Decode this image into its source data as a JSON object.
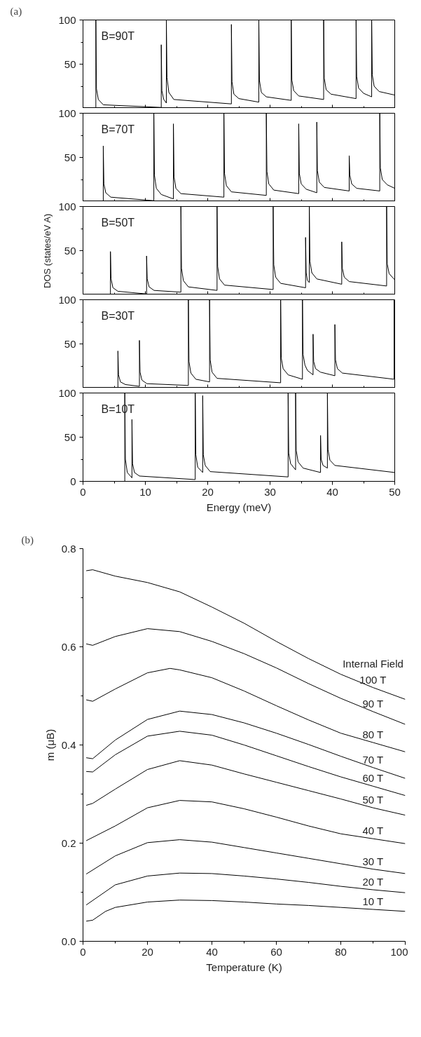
{
  "chart_data": [
    {
      "type": "line",
      "title": "(a)",
      "annotations": [
        "B=90T"
      ],
      "color": "#000000",
      "tick_labels": "y",
      "xlim": [
        0,
        50
      ],
      "xticks": [
        0,
        10,
        20,
        30,
        40,
        50
      ],
      "ylim": [
        0,
        100
      ],
      "yticks": [
        50,
        100
      ],
      "x": [
        0,
        2.06,
        2.06,
        2.16,
        2.46,
        3.26,
        12.55,
        12.55,
        12.65,
        12.95,
        13.37,
        13.37,
        13.47,
        13.77,
        14.57,
        23.8,
        23.8,
        23.9,
        24.2,
        25.0,
        28.2,
        28.2,
        28.3,
        28.6,
        29.4,
        33.4,
        33.4,
        33.5,
        33.8,
        34.6,
        38.6,
        38.6,
        38.7,
        39.0,
        39.8,
        43.8,
        43.8,
        43.9,
        44.2,
        45.0,
        46.3,
        46.3,
        46.4,
        46.7,
        47.5,
        50
      ],
      "values": [
        0,
        0,
        100,
        22,
        10,
        4,
        1,
        72,
        20,
        10,
        6,
        100,
        35,
        18,
        10,
        5,
        95,
        30,
        16,
        11,
        7,
        100,
        32,
        18,
        13,
        9,
        100,
        32,
        20,
        14,
        10,
        100,
        34,
        21,
        16,
        11,
        100,
        36,
        23,
        17,
        13,
        100,
        38,
        25,
        19,
        15
      ]
    },
    {
      "type": "line",
      "annotations": [
        "B=70T"
      ],
      "color": "#000000",
      "tick_labels": "y",
      "xlim": [
        0,
        50
      ],
      "xticks": [
        0,
        10,
        20,
        30,
        40,
        50
      ],
      "ylim": [
        0,
        100
      ],
      "yticks": [
        50,
        100
      ],
      "x": [
        0,
        3.25,
        3.25,
        3.35,
        3.65,
        4.45,
        11.36,
        11.36,
        11.46,
        11.76,
        12.56,
        14.5,
        14.5,
        14.6,
        14.9,
        15.7,
        22.6,
        22.6,
        22.7,
        23.0,
        23.8,
        29.4,
        29.4,
        29.5,
        29.8,
        30.6,
        34.6,
        34.6,
        34.7,
        35.0,
        35.8,
        37.5,
        37.5,
        37.6,
        37.9,
        38.7,
        42.7,
        42.7,
        42.8,
        43.1,
        43.9,
        47.6,
        47.6,
        47.7,
        48.0,
        48.8,
        50
      ],
      "values": [
        0,
        0,
        63,
        20,
        10,
        5,
        1,
        100,
        30,
        15,
        8,
        3,
        88,
        28,
        15,
        9,
        5,
        100,
        32,
        18,
        11,
        7,
        100,
        34,
        20,
        13,
        9,
        88,
        32,
        20,
        14,
        10,
        90,
        35,
        22,
        16,
        12,
        52,
        30,
        20,
        15,
        12,
        100,
        38,
        25,
        19,
        15
      ]
    },
    {
      "type": "line",
      "annotations": [
        "B=50T"
      ],
      "ylabel": "DOS (states/eV A)",
      "color": "#000000",
      "tick_labels": "y",
      "xlim": [
        0,
        50
      ],
      "xticks": [
        0,
        10,
        20,
        30,
        40,
        50
      ],
      "ylim": [
        0,
        100
      ],
      "yticks": [
        50,
        100
      ],
      "x": [
        0,
        4.4,
        4.4,
        4.5,
        4.8,
        5.6,
        10.2,
        10.2,
        10.3,
        10.6,
        11.4,
        15.7,
        15.7,
        15.8,
        16.1,
        16.9,
        21.5,
        21.5,
        21.6,
        21.9,
        22.7,
        30.5,
        30.5,
        30.6,
        30.9,
        31.7,
        35.7,
        35.7,
        35.8,
        36.0,
        36.3,
        36.3,
        36.4,
        36.7,
        37.5,
        41.5,
        41.5,
        41.6,
        41.9,
        42.7,
        48.7,
        48.7,
        48.8,
        49.1,
        50
      ],
      "values": [
        0,
        0,
        49,
        18,
        8,
        4,
        1,
        44,
        18,
        9,
        5,
        3,
        100,
        30,
        16,
        9,
        5,
        100,
        32,
        18,
        11,
        6,
        100,
        34,
        20,
        13,
        8,
        65,
        25,
        16,
        14,
        100,
        38,
        25,
        18,
        12,
        60,
        30,
        20,
        15,
        10,
        100,
        35,
        24,
        17
      ]
    },
    {
      "type": "line",
      "annotations": [
        "B=30T"
      ],
      "color": "#000000",
      "tick_labels": "y",
      "xlim": [
        0,
        50
      ],
      "xticks": [
        0,
        10,
        20,
        30,
        40,
        50
      ],
      "ylim": [
        0,
        100
      ],
      "yticks": [
        50,
        100
      ],
      "x": [
        0,
        5.6,
        5.6,
        5.7,
        6.0,
        6.8,
        9.05,
        9.05,
        9.15,
        9.45,
        10.25,
        16.9,
        16.9,
        17.0,
        17.3,
        18.1,
        20.3,
        20.3,
        20.4,
        20.7,
        21.5,
        31.7,
        31.7,
        31.8,
        32.1,
        32.9,
        35.2,
        35.2,
        35.3,
        35.6,
        36.0,
        36.9,
        36.9,
        37.0,
        37.3,
        38.1,
        40.4,
        40.4,
        40.5,
        40.8,
        41.6,
        49.9,
        49.9,
        50
      ],
      "values": [
        0,
        0,
        42,
        15,
        7,
        4,
        2,
        54,
        18,
        9,
        5,
        3,
        100,
        30,
        17,
        10,
        7,
        100,
        32,
        18,
        11,
        6,
        100,
        34,
        22,
        15,
        10,
        100,
        38,
        26,
        20,
        15,
        61,
        30,
        22,
        18,
        14,
        72,
        32,
        22,
        17,
        10,
        100,
        30
      ]
    },
    {
      "type": "line",
      "annotations": [
        "B=10T"
      ],
      "xlabel": "Energy (meV)",
      "color": "#000000",
      "xlim": [
        0,
        50
      ],
      "xticks": [
        0,
        10,
        20,
        30,
        40,
        50
      ],
      "ylim": [
        0,
        100
      ],
      "yticks": [
        0,
        50,
        100
      ],
      "x": [
        0,
        6.7,
        6.7,
        6.8,
        7.1,
        7.85,
        7.85,
        7.95,
        8.25,
        9.05,
        18,
        18,
        18.1,
        18.4,
        19.2,
        19.2,
        19.3,
        19.6,
        20.4,
        32.9,
        32.9,
        33.0,
        33.3,
        34.1,
        34.1,
        34.2,
        34.5,
        35.3,
        38.1,
        38.1,
        38.2,
        38.5,
        39.2,
        39.2,
        39.3,
        39.6,
        40.4,
        50
      ],
      "values": [
        0,
        0,
        100,
        25,
        10,
        4,
        70,
        20,
        10,
        6,
        2,
        100,
        30,
        16,
        10,
        97,
        30,
        18,
        11,
        5,
        100,
        32,
        20,
        13,
        100,
        35,
        22,
        15,
        10,
        52,
        25,
        18,
        15,
        100,
        36,
        24,
        18,
        10
      ]
    },
    {
      "type": "line",
      "title": "(b)",
      "xlabel": "Temperature (K)",
      "ylabel": "m (μB)",
      "annotations": [
        "Internal Field"
      ],
      "xlim": [
        0,
        100
      ],
      "xticks": [
        0,
        20,
        40,
        60,
        80,
        100
      ],
      "ylim": [
        0,
        0.8
      ],
      "yticks": [
        {
          "value": 0,
          "label": "0.0"
        },
        0.2,
        0.4,
        0.6,
        0.8
      ],
      "series": [
        {
          "name": "100 T",
          "color": "#000000",
          "x": [
            1,
            3,
            10,
            20,
            30,
            40,
            50,
            60,
            70,
            80,
            90,
            100
          ],
          "values": [
            0.755,
            0.757,
            0.744,
            0.731,
            0.712,
            0.681,
            0.648,
            0.611,
            0.576,
            0.544,
            0.517,
            0.493
          ]
        },
        {
          "name": "90 T",
          "color": "#000000",
          "x": [
            1,
            3,
            10,
            20,
            30,
            40,
            50,
            60,
            70,
            80,
            90,
            100
          ],
          "values": [
            0.606,
            0.603,
            0.621,
            0.637,
            0.631,
            0.611,
            0.586,
            0.557,
            0.525,
            0.495,
            0.468,
            0.442
          ]
        },
        {
          "name": "80 T",
          "color": "#000000",
          "x": [
            1,
            3,
            10,
            20,
            27,
            30,
            40,
            50,
            60,
            70,
            80,
            90,
            100
          ],
          "values": [
            0.492,
            0.489,
            0.514,
            0.547,
            0.556,
            0.553,
            0.537,
            0.51,
            0.48,
            0.451,
            0.424,
            0.405,
            0.386
          ]
        },
        {
          "name": "70 T",
          "color": "#000000",
          "x": [
            1,
            3,
            10,
            20,
            30,
            40,
            50,
            60,
            70,
            80,
            90,
            100
          ],
          "values": [
            0.374,
            0.372,
            0.41,
            0.452,
            0.469,
            0.462,
            0.445,
            0.424,
            0.401,
            0.377,
            0.354,
            0.332
          ]
        },
        {
          "name": "60 T",
          "color": "#000000",
          "x": [
            1,
            3,
            10,
            20,
            30,
            40,
            50,
            60,
            70,
            80,
            90,
            100
          ],
          "values": [
            0.346,
            0.345,
            0.38,
            0.418,
            0.428,
            0.42,
            0.4,
            0.378,
            0.356,
            0.335,
            0.316,
            0.297
          ]
        },
        {
          "name": "50 T",
          "color": "#000000",
          "x": [
            1,
            3,
            10,
            20,
            30,
            40,
            50,
            60,
            70,
            80,
            90,
            100
          ],
          "values": [
            0.277,
            0.281,
            0.31,
            0.35,
            0.368,
            0.359,
            0.341,
            0.324,
            0.307,
            0.29,
            0.272,
            0.257
          ]
        },
        {
          "name": "40 T",
          "color": "#000000",
          "x": [
            1,
            10,
            20,
            30,
            40,
            50,
            60,
            70,
            80,
            90,
            100
          ],
          "values": [
            0.205,
            0.235,
            0.272,
            0.287,
            0.284,
            0.27,
            0.253,
            0.235,
            0.219,
            0.209,
            0.199
          ]
        },
        {
          "name": "30 T",
          "color": "#000000",
          "x": [
            1,
            10,
            20,
            30,
            40,
            50,
            60,
            70,
            80,
            90,
            100
          ],
          "values": [
            0.137,
            0.174,
            0.201,
            0.207,
            0.202,
            0.191,
            0.18,
            0.169,
            0.158,
            0.147,
            0.138
          ]
        },
        {
          "name": "20 T",
          "color": "#000000",
          "x": [
            1,
            10,
            20,
            30,
            40,
            50,
            60,
            70,
            80,
            90,
            100
          ],
          "values": [
            0.074,
            0.115,
            0.133,
            0.139,
            0.138,
            0.133,
            0.127,
            0.12,
            0.112,
            0.105,
            0.099
          ]
        },
        {
          "name": "10 T",
          "color": "#000000",
          "x": [
            1,
            3,
            7,
            10,
            20,
            30,
            40,
            50,
            60,
            70,
            80,
            90,
            100
          ],
          "values": [
            0.041,
            0.043,
            0.061,
            0.069,
            0.08,
            0.084,
            0.083,
            0.08,
            0.076,
            0.073,
            0.069,
            0.065,
            0.061
          ]
        }
      ]
    }
  ]
}
